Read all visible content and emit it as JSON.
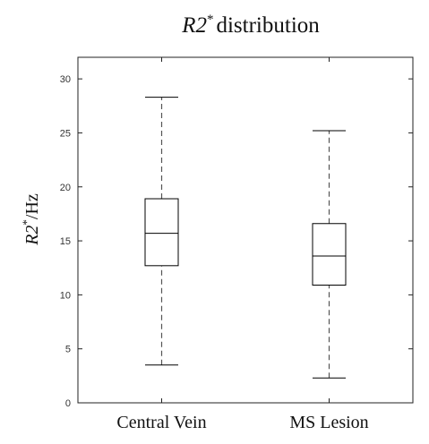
{
  "chart_data": {
    "type": "box",
    "title_main": "R2",
    "title_sup": "*",
    "title_rest": "distribution",
    "ylabel_main": "R2",
    "ylabel_sup": "*",
    "ylabel_rest": "/Hz",
    "xlabel": "",
    "ylim": [
      0,
      32
    ],
    "yticks": [
      0,
      5,
      10,
      15,
      20,
      25,
      30
    ],
    "grid": false,
    "categories": [
      "Central Vein",
      "MS Lesion"
    ],
    "boxes": [
      {
        "label": "Central Vein",
        "min": 3.5,
        "q1": 12.7,
        "median": 15.7,
        "q3": 18.9,
        "max": 28.3
      },
      {
        "label": "MS Lesion",
        "min": 2.3,
        "q1": 10.9,
        "median": 13.6,
        "q3": 16.6,
        "max": 25.2
      }
    ]
  },
  "colors": {
    "box_stroke": "#000000",
    "whisker": "#555555",
    "axis": "#222222"
  }
}
